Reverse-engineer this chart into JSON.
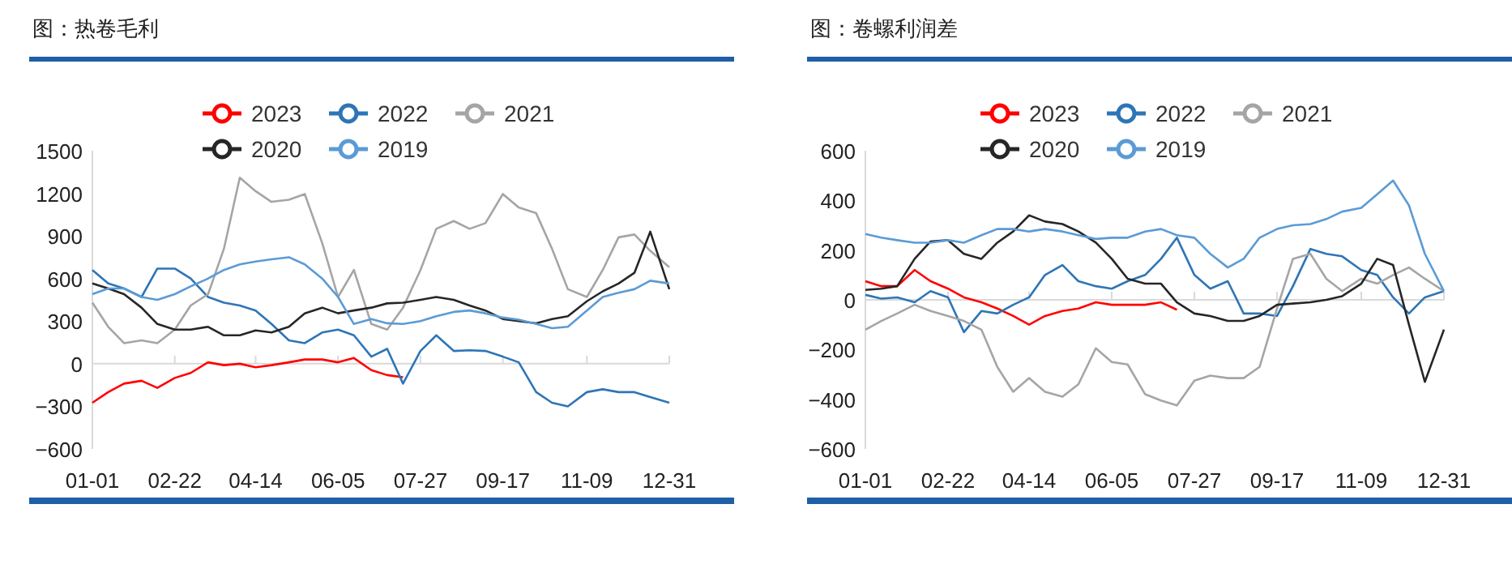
{
  "chart_data": [
    {
      "type": "line",
      "title": "图：热卷毛利",
      "legend": "top",
      "marker": "none",
      "x": [
        "--01-01",
        "--01-11",
        "--01-21",
        "--02-01",
        "--02-11",
        "--02-22",
        "--03-04",
        "--03-15",
        "--03-25",
        "--04-04",
        "--04-14",
        "--04-24",
        "--05-05",
        "--05-15",
        "--05-26",
        "--06-05",
        "--06-15",
        "--06-26",
        "--07-06",
        "--07-16",
        "--07-27",
        "--08-06",
        "--08-17",
        "--08-27",
        "--09-06",
        "--09-17",
        "--09-27",
        "--10-08",
        "--10-18",
        "--10-28",
        "--11-09",
        "--11-19",
        "--11-29",
        "--12-09",
        "--12-19",
        "--12-31"
      ],
      "xlim": [
        "--01-01",
        "--12-31"
      ],
      "xticks": [
        {
          "value": "--01-01",
          "label": "01-01"
        },
        {
          "value": "--02-22",
          "label": "02-22"
        },
        {
          "value": "--04-14",
          "label": "04-14"
        },
        {
          "value": "--06-05",
          "label": "06-05"
        },
        {
          "value": "--07-27",
          "label": "07-27"
        },
        {
          "value": "--09-17",
          "label": "09-17"
        },
        {
          "value": "--11-09",
          "label": "11-09"
        },
        {
          "value": "--12-31",
          "label": "12-31"
        }
      ],
      "ylim": [
        -600,
        1500
      ],
      "yticks": [
        -600,
        -300,
        0,
        300,
        600,
        900,
        1200,
        1500
      ],
      "series": [
        {
          "name": "2023",
          "color": "#ff0000",
          "values": [
            -275,
            -200,
            -140,
            -120,
            -170,
            -100,
            -65,
            10,
            -10,
            0,
            -25,
            -10,
            10,
            30,
            30,
            10,
            40,
            -45,
            -80,
            -95,
            null,
            null,
            null,
            null,
            null,
            null,
            null,
            null,
            null,
            null,
            null,
            null,
            null,
            null,
            null,
            null
          ]
        },
        {
          "name": "2022",
          "color": "#2e75b6",
          "values": [
            660,
            565,
            530,
            470,
            670,
            670,
            600,
            470,
            430,
            410,
            375,
            280,
            165,
            145,
            220,
            240,
            200,
            50,
            105,
            -140,
            90,
            200,
            90,
            95,
            90,
            50,
            10,
            -200,
            -275,
            -300,
            -200,
            -180,
            -200,
            -200,
            -235,
            -275
          ]
        },
        {
          "name": "2021",
          "color": "#a5a5a5",
          "values": [
            430,
            260,
            145,
            165,
            145,
            240,
            410,
            490,
            810,
            1310,
            1215,
            1140,
            1155,
            1195,
            850,
            470,
            660,
            280,
            240,
            395,
            660,
            950,
            1005,
            950,
            990,
            1195,
            1100,
            1060,
            810,
            525,
            470,
            660,
            890,
            910,
            795,
            680
          ]
        },
        {
          "name": "2020",
          "color": "#262626",
          "values": [
            565,
            530,
            490,
            395,
            280,
            240,
            240,
            260,
            200,
            200,
            235,
            220,
            260,
            355,
            395,
            355,
            375,
            395,
            425,
            430,
            450,
            470,
            450,
            410,
            375,
            315,
            300,
            285,
            315,
            335,
            440,
            510,
            565,
            640,
            930,
            525
          ]
        },
        {
          "name": "2019",
          "color": "#5b9bd5",
          "values": [
            490,
            530,
            530,
            470,
            450,
            490,
            545,
            600,
            660,
            700,
            720,
            735,
            750,
            700,
            600,
            470,
            280,
            315,
            285,
            280,
            300,
            335,
            365,
            375,
            355,
            325,
            310,
            280,
            250,
            260,
            375,
            470,
            500,
            525,
            585,
            565
          ]
        }
      ]
    },
    {
      "type": "line",
      "title": "图：卷螺利润差",
      "legend": "top",
      "marker": "none",
      "x": [
        "--01-01",
        "--01-11",
        "--01-21",
        "--02-01",
        "--02-11",
        "--02-22",
        "--03-04",
        "--03-15",
        "--03-25",
        "--04-04",
        "--04-14",
        "--04-24",
        "--05-05",
        "--05-15",
        "--05-26",
        "--06-05",
        "--06-15",
        "--06-26",
        "--07-06",
        "--07-16",
        "--07-27",
        "--08-06",
        "--08-17",
        "--08-27",
        "--09-06",
        "--09-17",
        "--09-27",
        "--10-08",
        "--10-18",
        "--10-28",
        "--11-09",
        "--11-19",
        "--11-29",
        "--12-09",
        "--12-19",
        "--12-31"
      ],
      "xlim": [
        "--01-01",
        "--12-31"
      ],
      "xticks": [
        {
          "value": "--01-01",
          "label": "01-01"
        },
        {
          "value": "--02-22",
          "label": "02-22"
        },
        {
          "value": "--04-14",
          "label": "04-14"
        },
        {
          "value": "--06-05",
          "label": "06-05"
        },
        {
          "value": "--07-27",
          "label": "07-27"
        },
        {
          "value": "--09-17",
          "label": "09-17"
        },
        {
          "value": "--11-09",
          "label": "11-09"
        },
        {
          "value": "--12-31",
          "label": "12-31"
        }
      ],
      "ylim": [
        -600,
        600
      ],
      "yticks": [
        -600,
        -400,
        -200,
        0,
        200,
        400,
        600
      ],
      "series": [
        {
          "name": "2023",
          "color": "#ff0000",
          "values": [
            75,
            55,
            55,
            120,
            75,
            45,
            10,
            -10,
            -35,
            -65,
            -100,
            -65,
            -45,
            -35,
            -10,
            -20,
            -20,
            -20,
            -10,
            -40,
            null,
            null,
            null,
            null,
            null,
            null,
            null,
            null,
            null,
            null,
            null,
            null,
            null,
            null,
            null,
            null
          ]
        },
        {
          "name": "2022",
          "color": "#2e75b6",
          "values": [
            20,
            5,
            10,
            -10,
            35,
            10,
            -130,
            -45,
            -55,
            -20,
            10,
            100,
            140,
            75,
            55,
            45,
            75,
            100,
            165,
            250,
            100,
            45,
            75,
            -55,
            -55,
            -65,
            55,
            205,
            185,
            175,
            120,
            100,
            10,
            -55,
            10,
            35
          ]
        },
        {
          "name": "2021",
          "color": "#a5a5a5",
          "values": [
            -120,
            -85,
            -55,
            -20,
            -45,
            -65,
            -85,
            -120,
            -270,
            -370,
            -315,
            -370,
            -390,
            -340,
            -195,
            -250,
            -260,
            -380,
            -405,
            -425,
            -325,
            -305,
            -315,
            -315,
            -270,
            -35,
            165,
            185,
            85,
            35,
            85,
            65,
            100,
            130,
            85,
            35
          ]
        },
        {
          "name": "2020",
          "color": "#262626",
          "values": [
            40,
            45,
            55,
            165,
            235,
            240,
            185,
            165,
            230,
            275,
            340,
            315,
            305,
            275,
            230,
            165,
            85,
            65,
            65,
            -10,
            -55,
            -65,
            -85,
            -85,
            -65,
            -20,
            -15,
            -10,
            0,
            15,
            65,
            165,
            140,
            -100,
            -330,
            -120
          ]
        },
        {
          "name": "2019",
          "color": "#5b9bd5",
          "values": [
            265,
            250,
            240,
            230,
            230,
            240,
            230,
            260,
            285,
            285,
            275,
            285,
            275,
            260,
            245,
            250,
            250,
            275,
            285,
            260,
            250,
            185,
            130,
            165,
            250,
            285,
            300,
            305,
            325,
            355,
            370,
            425,
            480,
            380,
            185,
            35
          ]
        }
      ]
    }
  ]
}
